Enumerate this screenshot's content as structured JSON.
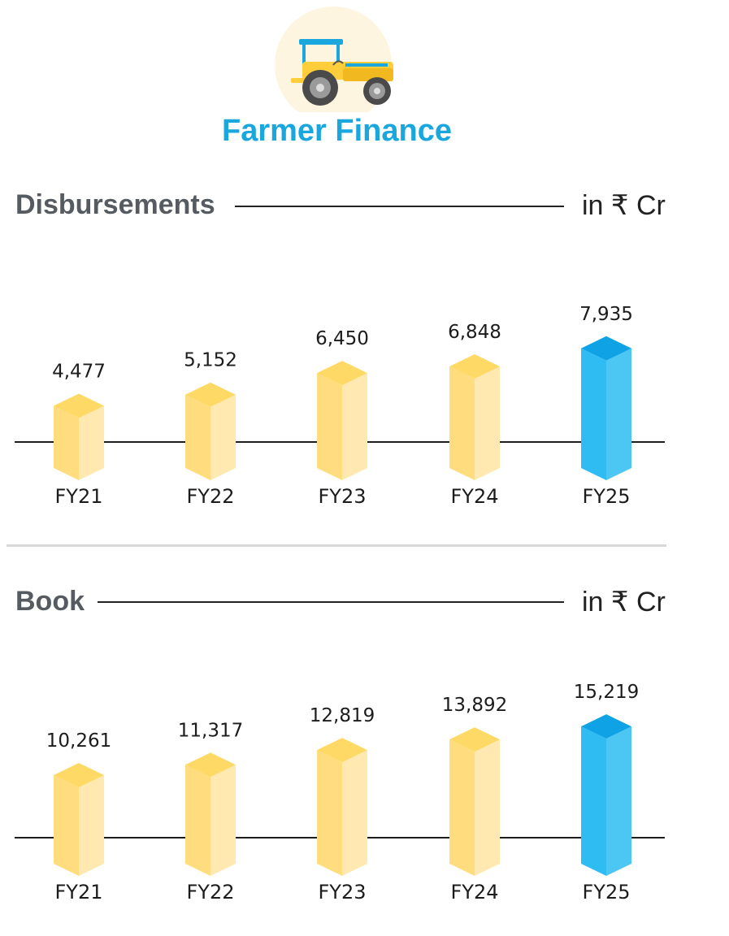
{
  "header": {
    "title": "Farmer Finance",
    "icon": "tractor-icon"
  },
  "colors": {
    "accent": "#1aa7de",
    "bar_yellow": "#ffd56b",
    "bar_blue": "#2ab8ef"
  },
  "disbursements": {
    "title": "Disbursements",
    "unit": "in ₹ Cr"
  },
  "book": {
    "title": "Book",
    "unit": "in ₹ Cr"
  },
  "chart_data": [
    {
      "type": "bar",
      "title": "Disbursements",
      "ylabel": "in ₹ Cr",
      "categories": [
        "FY21",
        "FY22",
        "FY23",
        "FY24",
        "FY25"
      ],
      "values": [
        4477,
        5152,
        6450,
        6848,
        7935
      ],
      "value_labels": [
        "4,477",
        "5,152",
        "6,450",
        "6,848",
        "7,935"
      ],
      "highlight": "FY25",
      "grid": false
    },
    {
      "type": "bar",
      "title": "Book",
      "ylabel": "in ₹ Cr",
      "categories": [
        "FY21",
        "FY22",
        "FY23",
        "FY24",
        "FY25"
      ],
      "values": [
        10261,
        11317,
        12819,
        13892,
        15219
      ],
      "value_labels": [
        "10,261",
        "11,317",
        "12,819",
        "13,892",
        "15,219"
      ],
      "highlight": "FY25",
      "grid": false
    }
  ]
}
